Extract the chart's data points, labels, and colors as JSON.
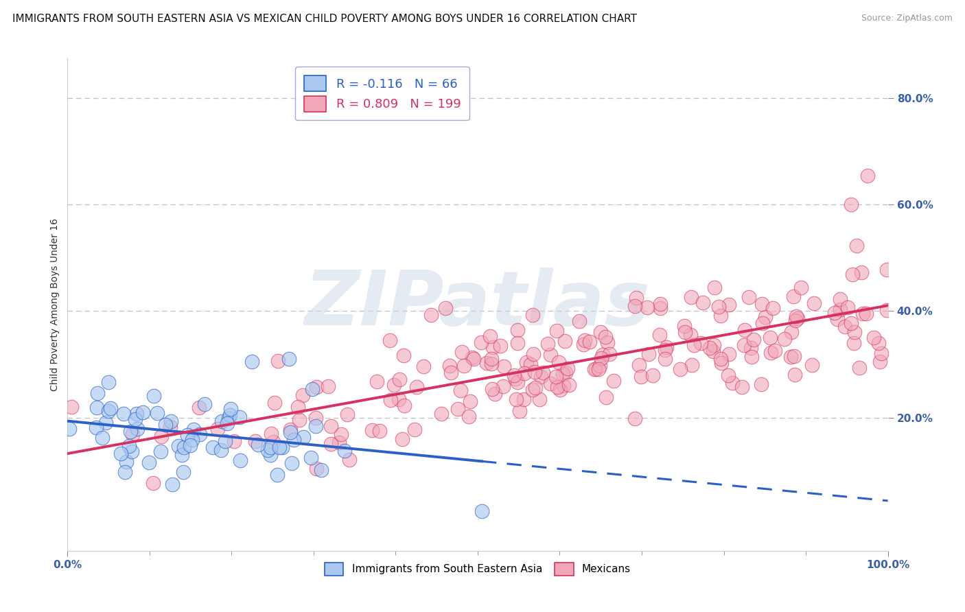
{
  "title": "IMMIGRANTS FROM SOUTH EASTERN ASIA VS MEXICAN CHILD POVERTY AMONG BOYS UNDER 16 CORRELATION CHART",
  "source": "Source: ZipAtlas.com",
  "ylabel": "Child Poverty Among Boys Under 16",
  "xlim": [
    0.0,
    1.0
  ],
  "ylim": [
    -0.05,
    0.875
  ],
  "blue_label": "Immigrants from South Eastern Asia",
  "pink_label": "Mexicans",
  "blue_R": -0.116,
  "blue_N": 66,
  "pink_R": 0.809,
  "pink_N": 199,
  "blue_color": "#aac8f0",
  "pink_color": "#f0a8b8",
  "blue_line_color": "#2a60c8",
  "pink_line_color": "#d83060",
  "background_color": "#ffffff",
  "watermark_color": "#ccd8e8",
  "title_fontsize": 11,
  "axis_label_fontsize": 10,
  "tick_label_fontsize": 11,
  "ytick_positions": [
    0.2,
    0.4,
    0.6,
    0.8
  ],
  "ytick_labels": [
    "20.0%",
    "40.0%",
    "60.0%",
    "80.0%"
  ],
  "xtick_positions": [
    0.0,
    1.0
  ],
  "xtick_labels": [
    "0.0%",
    "100.0%"
  ]
}
